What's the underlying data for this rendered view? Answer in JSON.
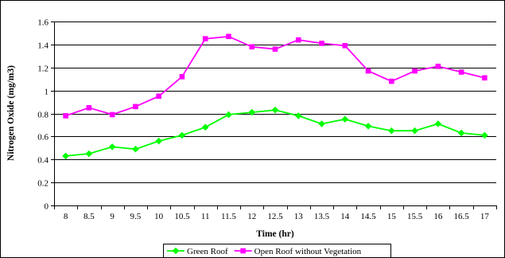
{
  "chart_data": {
    "type": "line",
    "title": "",
    "xlabel": "Time (hr)",
    "ylabel": "Nitrogen Oxide (mg/m3)",
    "x": [
      "8",
      "8.5",
      "9",
      "9.5",
      "10",
      "10.5",
      "11",
      "11.5",
      "12",
      "12.5",
      "13",
      "13.5",
      "14",
      "14.5",
      "15",
      "15.5",
      "16",
      "16.5",
      "17"
    ],
    "ylim": [
      0,
      1.6
    ],
    "yticks": [
      "0",
      "0.2",
      "0.4",
      "0.6",
      "0.8",
      "1",
      "1.2",
      "1.4",
      "1.6"
    ],
    "grid": true,
    "legend_position": "bottom",
    "series": [
      {
        "name": "Green Roof",
        "color": "#00ff00",
        "marker": "diamond",
        "values": [
          0.43,
          0.45,
          0.51,
          0.49,
          0.56,
          0.61,
          0.68,
          0.79,
          0.81,
          0.83,
          0.78,
          0.71,
          0.75,
          0.69,
          0.65,
          0.65,
          0.71,
          0.63,
          0.61
        ]
      },
      {
        "name": "Open Roof without Vegetation",
        "color": "#ff00ff",
        "marker": "square",
        "values": [
          0.78,
          0.85,
          0.79,
          0.86,
          0.95,
          1.12,
          1.45,
          1.47,
          1.38,
          1.36,
          1.44,
          1.41,
          1.39,
          1.17,
          1.08,
          1.17,
          1.21,
          1.16,
          1.11
        ]
      }
    ]
  }
}
